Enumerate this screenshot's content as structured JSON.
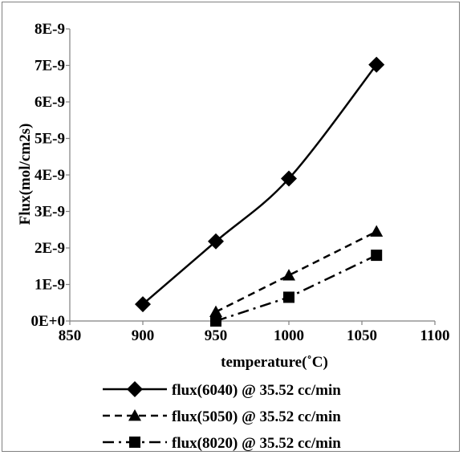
{
  "chart_data": {
    "type": "line",
    "title": "",
    "xlabel": "temperature(˚C)",
    "ylabel": "Flux(mol/cm2s)",
    "xlim": [
      850,
      1100
    ],
    "ylim": [
      0,
      8e-09
    ],
    "x_ticks": [
      850,
      900,
      950,
      1000,
      1050,
      1100
    ],
    "x_tick_labels": [
      "850",
      "900",
      "950",
      "1000",
      "1050",
      "1100"
    ],
    "y_ticks": [
      0,
      1e-09,
      2e-09,
      3e-09,
      4e-09,
      5e-09,
      6e-09,
      7e-09,
      8e-09
    ],
    "y_tick_labels": [
      "0E+0",
      "1E-9",
      "2E-9",
      "3E-9",
      "4E-9",
      "5E-9",
      "6E-9",
      "7E-9",
      "8E-9"
    ],
    "grid": false,
    "legend_position": "bottom",
    "series": [
      {
        "name": "flux(6040) @ 35.52 cc/min",
        "marker": "diamond",
        "line_style": "solid",
        "smooth": true,
        "color": "#000000",
        "x": [
          900,
          950,
          1000,
          1060
        ],
        "y": [
          4.6e-10,
          2.18e-09,
          3.9e-09,
          7.02e-09
        ]
      },
      {
        "name": "flux(5050) @ 35.52 cc/min",
        "marker": "triangle",
        "line_style": "dashed",
        "smooth": false,
        "color": "#000000",
        "x": [
          950,
          1000,
          1060
        ],
        "y": [
          2.5e-10,
          1.25e-09,
          2.45e-09
        ]
      },
      {
        "name": "flux(8020) @ 35.52 cc/min",
        "marker": "square",
        "line_style": "dashdot",
        "smooth": false,
        "color": "#000000",
        "x": [
          950,
          1000,
          1060
        ],
        "y": [
          0,
          6.5e-10,
          1.8e-09
        ]
      }
    ]
  }
}
